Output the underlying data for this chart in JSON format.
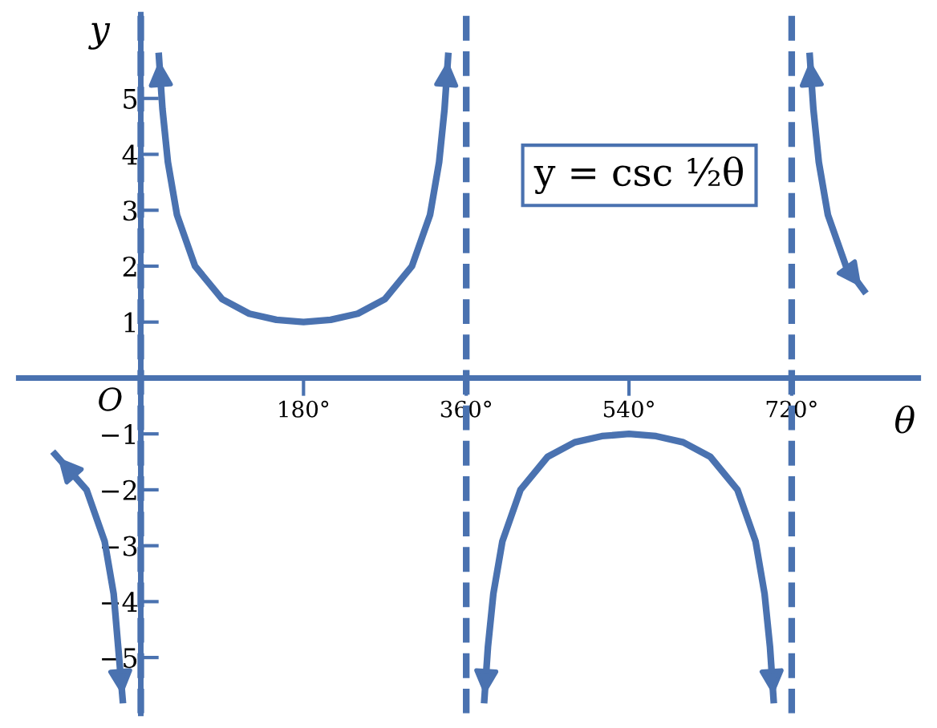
{
  "chart_data": {
    "type": "line",
    "xlabel": "θ",
    "ylabel": "y",
    "series": [
      {
        "color": "#4a72b0",
        "x": [
          -95,
          -60,
          -40,
          -30,
          -20
        ],
        "values": [
          -1.36,
          -2,
          -2.92,
          -3.86,
          -5.76
        ]
      },
      {
        "color": "#4a72b0",
        "x": [
          20,
          24,
          30,
          40,
          60,
          90,
          120,
          150,
          180,
          210,
          240,
          270,
          300,
          320,
          330,
          336,
          340
        ],
        "values": [
          5.76,
          4.81,
          3.86,
          2.92,
          2,
          1.41,
          1.15,
          1.04,
          1,
          1.04,
          1.15,
          1.41,
          2,
          2.92,
          3.86,
          4.81,
          5.76
        ]
      },
      {
        "color": "#4a72b0",
        "x": [
          380,
          384,
          390,
          400,
          420,
          450,
          480,
          510,
          540,
          570,
          600,
          630,
          660,
          680,
          690,
          696,
          700
        ],
        "values": [
          -5.76,
          -4.81,
          -3.86,
          -2.92,
          -2,
          -1.41,
          -1.15,
          -1.04,
          -1,
          -1.04,
          -1.15,
          -1.41,
          -2,
          -2.92,
          -3.86,
          -4.81,
          -5.76
        ]
      },
      {
        "color": "#4a72b0",
        "x": [
          740,
          744,
          750,
          760,
          780,
          800
        ],
        "values": [
          5.76,
          4.81,
          3.86,
          2.92,
          2,
          1.56
        ]
      }
    ],
    "xlim": [
      -135,
      860
    ],
    "ylim": [
      -6,
      6.5
    ],
    "xticks": [
      {
        "value": 180,
        "label": "180°"
      },
      {
        "value": 360,
        "label": "360°"
      },
      {
        "value": 540,
        "label": "540°"
      },
      {
        "value": 720,
        "label": "720°"
      }
    ],
    "yticks": [
      {
        "value": -5,
        "label": "−5"
      },
      {
        "value": -4,
        "label": "−4"
      },
      {
        "value": -3,
        "label": "−3"
      },
      {
        "value": -2,
        "label": "−2"
      },
      {
        "value": -1,
        "label": "−1"
      },
      1,
      2,
      3,
      4,
      5
    ],
    "ref_lines": [
      {
        "axis": "x",
        "value": 0,
        "color": "#4a72b0",
        "line_style": "dashed"
      },
      {
        "axis": "x",
        "value": 360,
        "color": "#4a72b0",
        "line_style": "dashed"
      },
      {
        "axis": "x",
        "value": 720,
        "color": "#4a72b0",
        "line_style": "dashed"
      }
    ],
    "annotations": [
      "y = csc ½θ",
      "O"
    ],
    "line_style": "solid",
    "marker": "none",
    "grid": false,
    "legend": false
  }
}
